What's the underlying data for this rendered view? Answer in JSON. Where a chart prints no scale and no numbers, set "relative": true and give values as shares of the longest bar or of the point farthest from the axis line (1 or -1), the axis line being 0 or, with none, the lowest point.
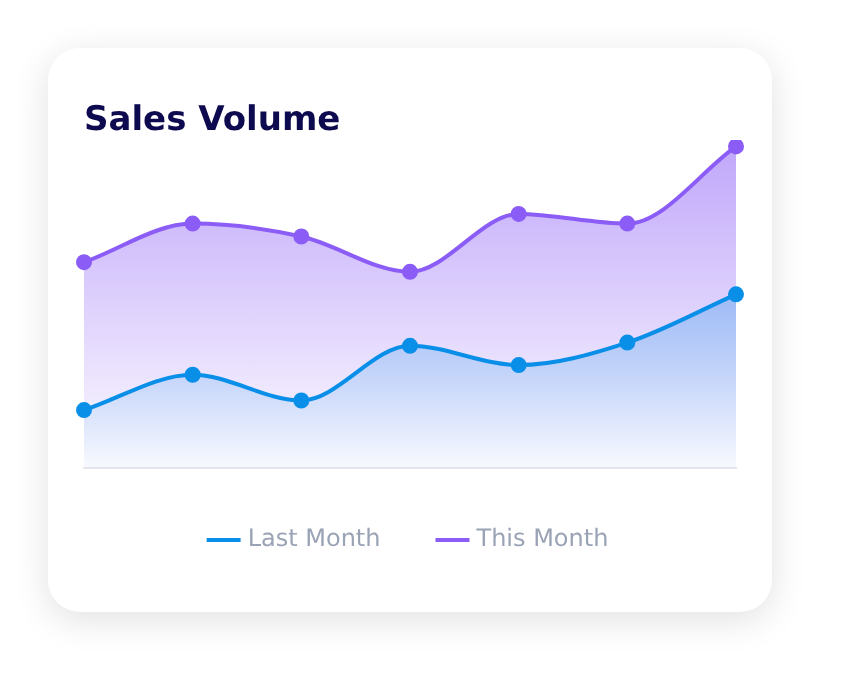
{
  "chart_data": {
    "type": "area",
    "title": "Sales Volume",
    "relative": true,
    "categories": [
      null,
      null,
      null,
      null,
      null,
      null,
      null
    ],
    "series": [
      {
        "name": "Last Month",
        "color": "#0a8fe8",
        "values": [
          0.18,
          0.29,
          0.21,
          0.38,
          0.32,
          0.39,
          0.54
        ]
      },
      {
        "name": "This Month",
        "color": "#8b5cf6",
        "values": [
          0.64,
          0.76,
          0.72,
          0.61,
          0.79,
          0.76,
          1
        ]
      }
    ],
    "legend": "bottom",
    "marker": "circle"
  }
}
